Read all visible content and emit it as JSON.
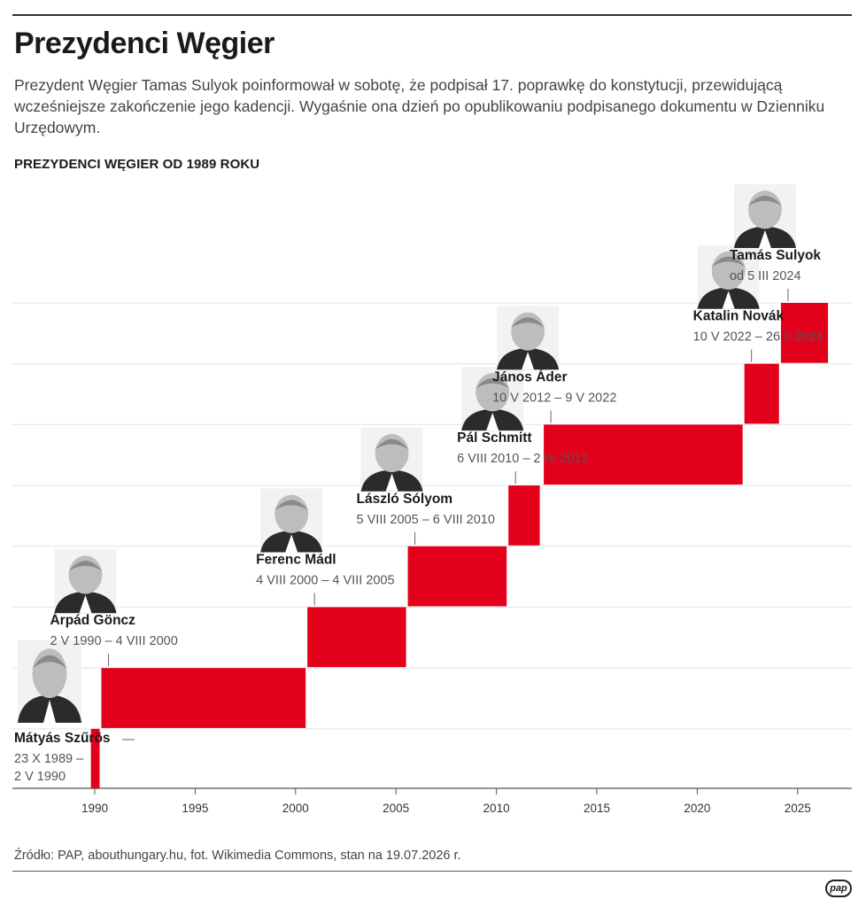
{
  "header": {
    "title": "Prezydenci Węgier",
    "lead": "Prezydent Węgier Tamas Sulyok poinformował w sobotę, że podpisał 17. poprawkę do konstytucji, przewidującą wcześniejsze zakończenie jego kadencji. Wygaśnie ona dzień po opublikowaniu podpisanego dokumentu w Dzienniku Urzędowym."
  },
  "footer": {
    "source": "Źródło: PAP, abouthungary.hu, fot. Wikimedia Commons, stan na 19.07.2026 r.",
    "logo": "pap"
  },
  "colors": {
    "bar": "#e2001a",
    "grid": "#e4e4e4",
    "axis": "#555555"
  },
  "chart_data": {
    "type": "bar",
    "subtype": "staircase timeline (start to end of term)",
    "title": "PREZYDENCI WĘGIER OD 1989 ROKU",
    "x_ticks": [
      1990,
      1995,
      2000,
      2005,
      2010,
      2015,
      2020,
      2025
    ],
    "xlim": [
      1985.9,
      2027.7
    ],
    "grid": true,
    "presidents": [
      {
        "name": "Mátyás Szűrös",
        "term": [
          "23 X 1989 –",
          "2 V 1990"
        ],
        "start": 1989.81,
        "end": 1990.33,
        "photo": "portrait"
      },
      {
        "name": "Árpád Göncz",
        "term": [
          "2 V 1990 – 4 VIII 2000"
        ],
        "start": 1990.33,
        "end": 2000.59,
        "photo": "portrait"
      },
      {
        "name": "Ferenc Mádl",
        "term": [
          "4 VIII 2000 – 4 VIII 2005"
        ],
        "start": 2000.59,
        "end": 2005.59,
        "photo": "portrait"
      },
      {
        "name": "László Sólyom",
        "term": [
          "5 VIII 2005 – 6 VIII 2010"
        ],
        "start": 2005.59,
        "end": 2010.6,
        "photo": "portrait"
      },
      {
        "name": "Pál Schmitt",
        "term": [
          "6 VIII 2010 – 2 IV 2012"
        ],
        "start": 2010.6,
        "end": 2012.25,
        "photo": "portrait"
      },
      {
        "name": "János Áder",
        "term": [
          "10 V 2012 – 9 V 2022"
        ],
        "start": 2012.36,
        "end": 2022.35,
        "photo": "portrait"
      },
      {
        "name": "Katalin Novák",
        "term": [
          "10 V 2022 – 26 II 2024"
        ],
        "start": 2022.35,
        "end": 2024.16,
        "photo": "portrait"
      },
      {
        "name": "Tamás Sulyok",
        "term": [
          "od 5 III 2024"
        ],
        "start": 2024.17,
        "end": null,
        "photo": "portrait"
      }
    ]
  }
}
